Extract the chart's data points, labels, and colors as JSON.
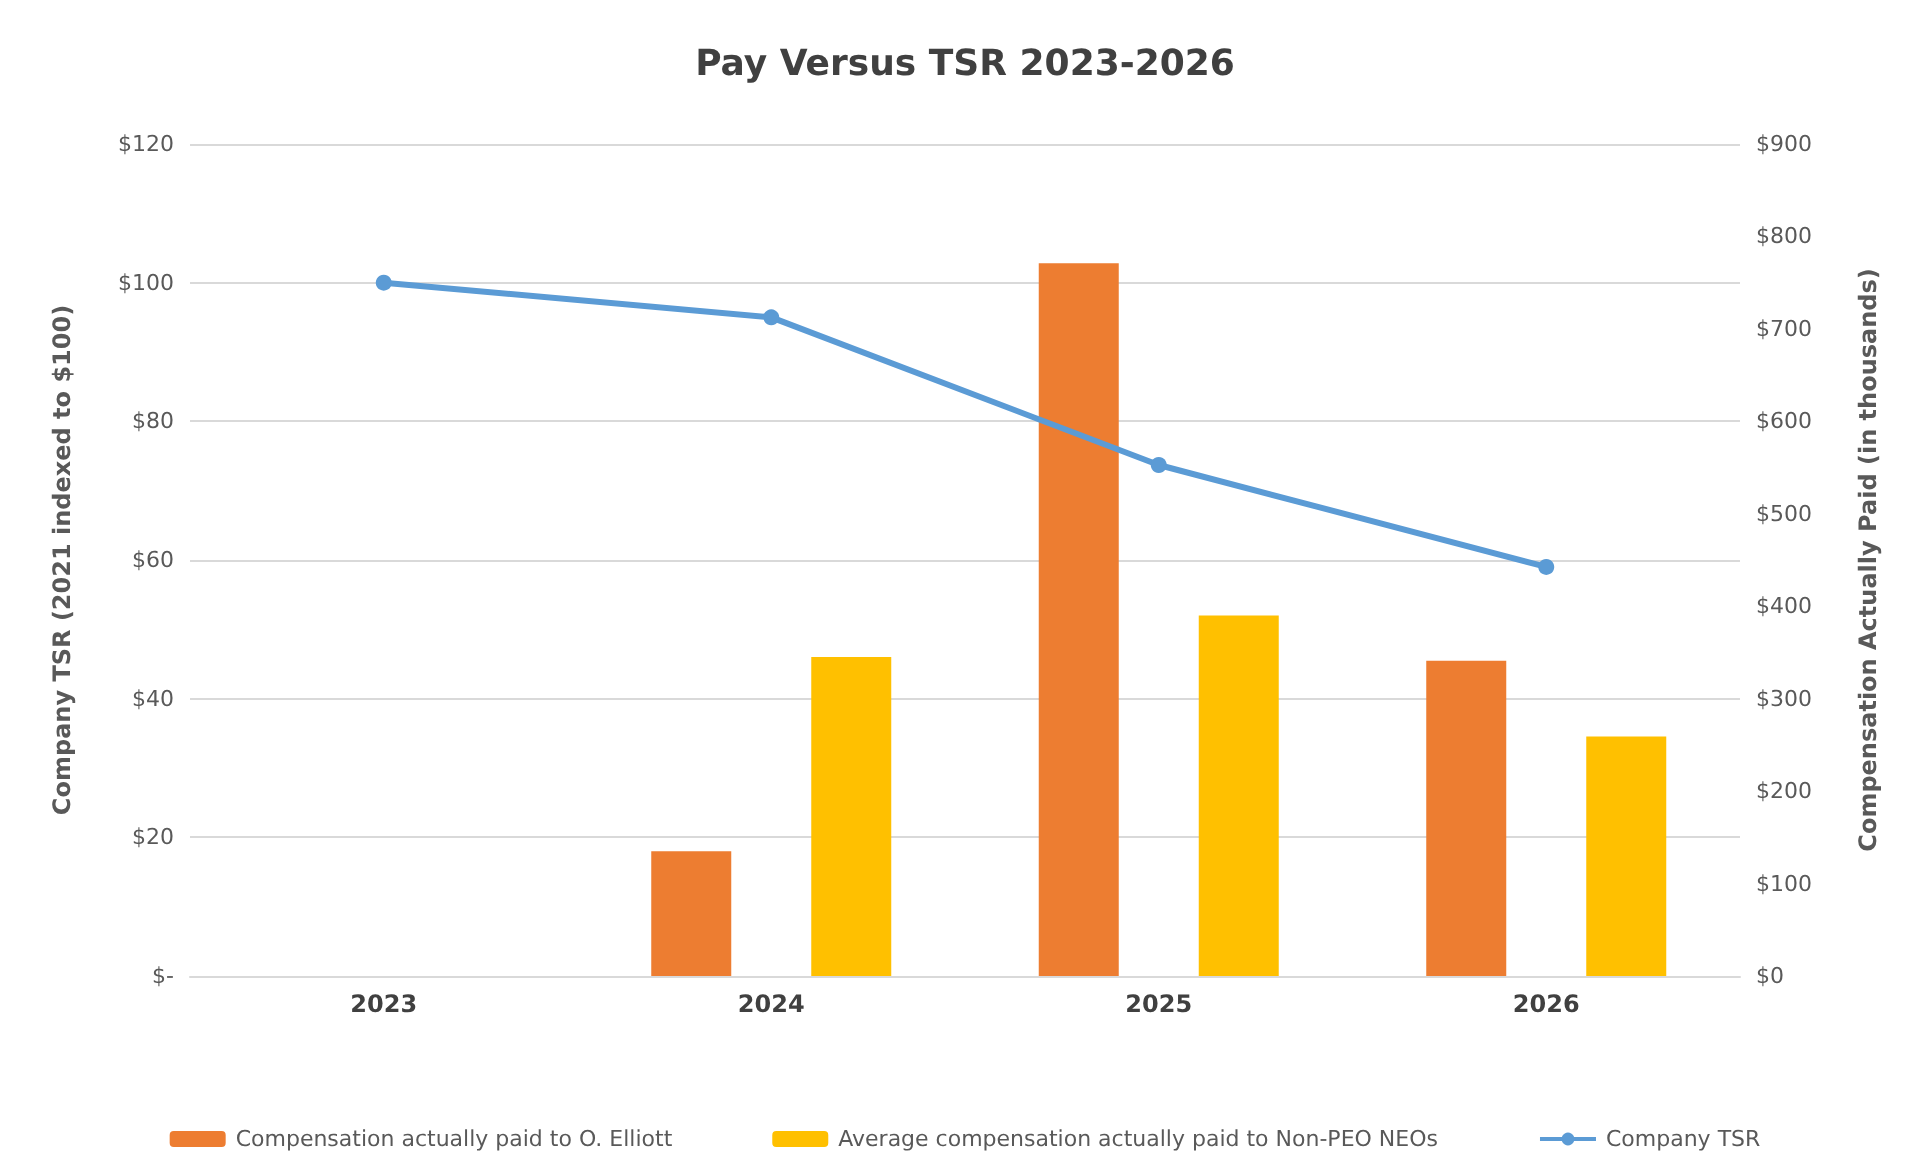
{
  "chart_data": {
    "type": "bar",
    "title": "Pay Versus TSR 2023-2026",
    "categories": [
      "2023",
      "2024",
      "2025",
      "2026"
    ],
    "series": [
      {
        "name": "Compensation actually paid to O. Elliott",
        "color": "#ed7d31",
        "axis": "y2",
        "values": [
          null,
          135,
          771,
          341
        ]
      },
      {
        "name": "Average compensation actually paid to Non-PEO NEOs",
        "color": "#ffc000",
        "axis": "y2",
        "values": [
          null,
          345,
          390,
          259
        ]
      },
      {
        "name": "Company TSR",
        "type": "line",
        "color": "#5b9bd5",
        "values": [
          100,
          95,
          73.7,
          59
        ],
        "marker": "circle"
      }
    ],
    "ylabel": "Company TSR (2021 indexed to $100)",
    "y2label": "Compensation Actually Paid (in thousands)",
    "ylim": [
      0,
      120
    ],
    "yticks": [
      {
        "value": 0,
        "label": "$-"
      },
      {
        "value": 20,
        "label": "$20"
      },
      {
        "value": 40,
        "label": "$40"
      },
      {
        "value": 60,
        "label": "$60"
      },
      {
        "value": 80,
        "label": "$80"
      },
      {
        "value": 100,
        "label": "$100"
      },
      {
        "value": 120,
        "label": "$120"
      }
    ],
    "y2lim": [
      0,
      900
    ],
    "y2ticks": [
      {
        "value": 0,
        "label": "$0"
      },
      {
        "value": 100,
        "label": "$100"
      },
      {
        "value": 200,
        "label": "$200"
      },
      {
        "value": 300,
        "label": "$300"
      },
      {
        "value": 400,
        "label": "$400"
      },
      {
        "value": 500,
        "label": "$500"
      },
      {
        "value": 600,
        "label": "$600"
      },
      {
        "value": 700,
        "label": "$700"
      },
      {
        "value": 800,
        "label": "$800"
      },
      {
        "value": 900,
        "label": "$900"
      }
    ],
    "grid": "y",
    "legend": "bottom"
  }
}
